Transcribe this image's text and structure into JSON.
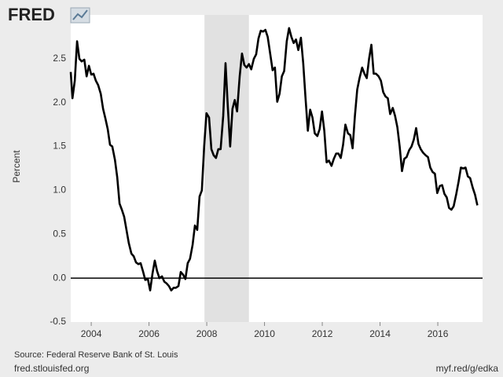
{
  "brand": "FRED",
  "chart_data": {
    "type": "line",
    "y_label": "Percent",
    "source": "Source: Federal Reserve Bank of St. Louis",
    "site": "fred.stlouisfed.org",
    "short_link": "myf.red/g/edka",
    "xlim": [
      2003.29,
      2017.55
    ],
    "xticks": [
      2004,
      2006,
      2008,
      2010,
      2012,
      2014,
      2016
    ],
    "ylim": [
      -0.5,
      3.0
    ],
    "yticks": [
      {
        "value": -0.5,
        "label": "-0.5"
      },
      {
        "value": 0,
        "label": "0.0"
      },
      {
        "value": 0.5,
        "label": "0.5"
      },
      {
        "value": 1,
        "label": "1.0"
      },
      {
        "value": 1.5,
        "label": "1.5"
      },
      {
        "value": 2,
        "label": "2.0"
      },
      {
        "value": 2.5,
        "label": "2.5"
      }
    ],
    "zero_line": true,
    "shaded": [
      {
        "start": 2007.92,
        "end": 2009.46,
        "color": "#e1e1e1"
      }
    ],
    "x": [
      2003.29,
      2003.35,
      2003.43,
      2003.51,
      2003.59,
      2003.67,
      2003.76,
      2003.84,
      2003.92,
      2004.0,
      2004.08,
      2004.16,
      2004.24,
      2004.33,
      2004.41,
      2004.49,
      2004.57,
      2004.65,
      2004.73,
      2004.82,
      2004.9,
      2004.98,
      2005.06,
      2005.14,
      2005.22,
      2005.3,
      2005.39,
      2005.47,
      2005.55,
      2005.63,
      2005.71,
      2005.79,
      2005.87,
      2005.96,
      2006.04,
      2006.12,
      2006.2,
      2006.28,
      2006.36,
      2006.45,
      2006.53,
      2006.61,
      2006.69,
      2006.77,
      2006.85,
      2006.93,
      2007.02,
      2007.1,
      2007.18,
      2007.26,
      2007.34,
      2007.42,
      2007.51,
      2007.59,
      2007.67,
      2007.75,
      2007.83,
      2007.91,
      2007.99,
      2008.08,
      2008.16,
      2008.24,
      2008.32,
      2008.4,
      2008.48,
      2008.57,
      2008.65,
      2008.73,
      2008.81,
      2008.89,
      2008.97,
      2009.05,
      2009.14,
      2009.22,
      2009.3,
      2009.38,
      2009.46,
      2009.54,
      2009.63,
      2009.71,
      2009.79,
      2009.87,
      2009.95,
      2010.03,
      2010.11,
      2010.2,
      2010.28,
      2010.36,
      2010.44,
      2010.52,
      2010.6,
      2010.68,
      2010.77,
      2010.85,
      2010.93,
      2011.01,
      2011.09,
      2011.17,
      2011.26,
      2011.34,
      2011.42,
      2011.5,
      2011.58,
      2011.66,
      2011.74,
      2011.83,
      2011.91,
      2011.99,
      2012.07,
      2012.15,
      2012.23,
      2012.32,
      2012.4,
      2012.48,
      2012.56,
      2012.64,
      2012.72,
      2012.8,
      2012.89,
      2012.97,
      2013.05,
      2013.13,
      2013.21,
      2013.29,
      2013.38,
      2013.46,
      2013.54,
      2013.62,
      2013.7,
      2013.78,
      2013.86,
      2013.95,
      2014.03,
      2014.11,
      2014.19,
      2014.27,
      2014.35,
      2014.44,
      2014.52,
      2014.6,
      2014.68,
      2014.76,
      2014.84,
      2014.92,
      2015.01,
      2015.09,
      2015.17,
      2015.25,
      2015.33,
      2015.41,
      2015.49,
      2015.58,
      2015.66,
      2015.74,
      2015.82,
      2015.9,
      2015.98,
      2016.07,
      2016.15,
      2016.23,
      2016.31,
      2016.39,
      2016.47,
      2016.55,
      2016.64,
      2016.72,
      2016.8,
      2016.88,
      2016.96,
      2017.04,
      2017.12,
      2017.21,
      2017.29,
      2017.37
    ],
    "series": [
      {
        "color": "#000000",
        "values": [
          2.35,
          2.05,
          2.25,
          2.7,
          2.5,
          2.47,
          2.49,
          2.3,
          2.42,
          2.32,
          2.33,
          2.25,
          2.2,
          2.1,
          1.93,
          1.82,
          1.7,
          1.52,
          1.5,
          1.35,
          1.15,
          0.85,
          0.78,
          0.7,
          0.55,
          0.4,
          0.28,
          0.25,
          0.18,
          0.16,
          0.17,
          0.08,
          -0.02,
          -0.01,
          -0.14,
          0.05,
          0.2,
          0.08,
          0.0,
          0.02,
          -0.04,
          -0.06,
          -0.09,
          -0.14,
          -0.11,
          -0.11,
          -0.09,
          0.07,
          0.04,
          -0.01,
          0.17,
          0.22,
          0.38,
          0.6,
          0.55,
          0.93,
          1.0,
          1.5,
          1.88,
          1.83,
          1.47,
          1.4,
          1.37,
          1.47,
          1.47,
          1.85,
          2.45,
          1.95,
          1.5,
          1.93,
          2.03,
          1.9,
          2.3,
          2.56,
          2.43,
          2.4,
          2.44,
          2.38,
          2.5,
          2.55,
          2.73,
          2.82,
          2.81,
          2.83,
          2.75,
          2.55,
          2.37,
          2.4,
          2.01,
          2.1,
          2.3,
          2.36,
          2.7,
          2.85,
          2.75,
          2.68,
          2.72,
          2.6,
          2.74,
          2.45,
          2.05,
          1.68,
          1.92,
          1.83,
          1.65,
          1.62,
          1.7,
          1.9,
          1.68,
          1.32,
          1.34,
          1.28,
          1.36,
          1.42,
          1.42,
          1.37,
          1.52,
          1.75,
          1.65,
          1.63,
          1.48,
          1.85,
          2.15,
          2.28,
          2.4,
          2.33,
          2.28,
          2.5,
          2.66,
          2.33,
          2.33,
          2.3,
          2.25,
          2.12,
          2.07,
          2.05,
          1.87,
          1.94,
          1.85,
          1.72,
          1.5,
          1.22,
          1.36,
          1.38,
          1.46,
          1.5,
          1.58,
          1.71,
          1.53,
          1.47,
          1.43,
          1.4,
          1.38,
          1.26,
          1.21,
          1.19,
          0.97,
          1.05,
          1.06,
          0.96,
          0.92,
          0.8,
          0.78,
          0.82,
          0.96,
          1.1,
          1.26,
          1.25,
          1.26,
          1.16,
          1.14,
          1.03,
          0.95,
          0.83
        ]
      }
    ]
  }
}
